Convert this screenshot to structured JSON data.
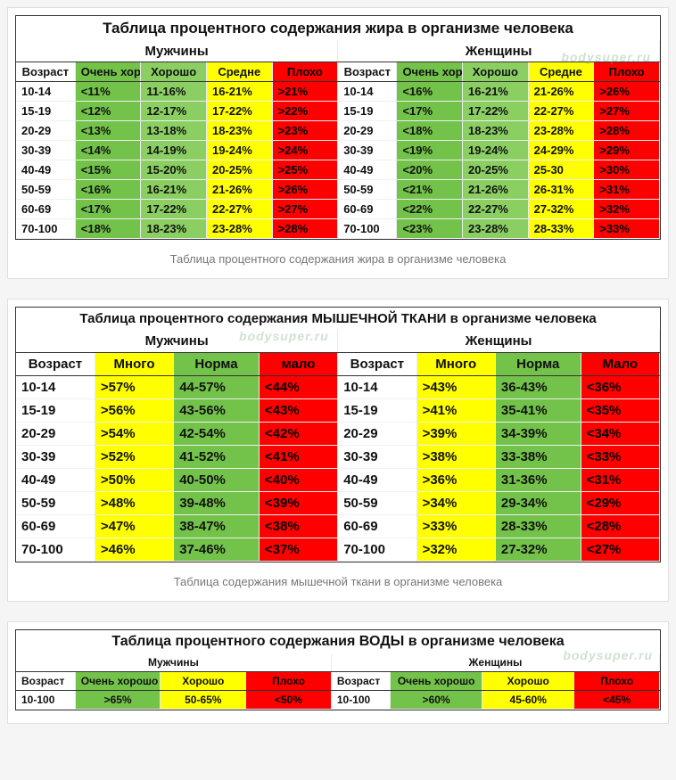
{
  "colors": {
    "very_good": "#73c24a",
    "good": "#8bcf63",
    "medium": "#ffff00",
    "bad": "#ff0000",
    "border": "#333333",
    "bg": "#ffffff"
  },
  "watermark": "bodysuper.ru",
  "fat": {
    "title": "Таблица процентного содержания жира в организме человека",
    "caption": "Таблица процентного содержания жира в организме человека",
    "gender_men": "Мужчины",
    "gender_women": "Женщины",
    "headers": {
      "age": "Возраст",
      "very_good": "Очень хорошо",
      "good": "Хорошо",
      "medium": "Средне",
      "bad": "Плохо"
    },
    "men": [
      {
        "age": "10-14",
        "vg": "<11%",
        "g": "11-16%",
        "m": "16-21%",
        "b": ">21%"
      },
      {
        "age": "15-19",
        "vg": "<12%",
        "g": "12-17%",
        "m": "17-22%",
        "b": ">22%"
      },
      {
        "age": "20-29",
        "vg": "<13%",
        "g": "13-18%",
        "m": "18-23%",
        "b": ">23%"
      },
      {
        "age": "30-39",
        "vg": "<14%",
        "g": "14-19%",
        "m": "19-24%",
        "b": ">24%"
      },
      {
        "age": "40-49",
        "vg": "<15%",
        "g": "15-20%",
        "m": "20-25%",
        "b": ">25%"
      },
      {
        "age": "50-59",
        "vg": "<16%",
        "g": "16-21%",
        "m": "21-26%",
        "b": ">26%"
      },
      {
        "age": "60-69",
        "vg": "<17%",
        "g": "17-22%",
        "m": "22-27%",
        "b": ">27%"
      },
      {
        "age": "70-100",
        "vg": "<18%",
        "g": "18-23%",
        "m": "23-28%",
        "b": ">28%"
      }
    ],
    "women": [
      {
        "age": "10-14",
        "vg": "<16%",
        "g": "16-21%",
        "m": "21-26%",
        "b": ">26%"
      },
      {
        "age": "15-19",
        "vg": "<17%",
        "g": "17-22%",
        "m": "22-27%",
        "b": ">27%"
      },
      {
        "age": "20-29",
        "vg": "<18%",
        "g": "18-23%",
        "m": "23-28%",
        "b": ">28%"
      },
      {
        "age": "30-39",
        "vg": "<19%",
        "g": "19-24%",
        "m": "24-29%",
        "b": ">29%"
      },
      {
        "age": "40-49",
        "vg": "<20%",
        "g": "20-25%",
        "m": "25-30",
        "b": ">30%"
      },
      {
        "age": "50-59",
        "vg": "<21%",
        "g": "21-26%",
        "m": "26-31%",
        "b": ">31%"
      },
      {
        "age": "60-69",
        "vg": "<22%",
        "g": "22-27%",
        "m": "27-32%",
        "b": ">32%"
      },
      {
        "age": "70-100",
        "vg": "<23%",
        "g": "23-28%",
        "m": "28-33%",
        "b": ">33%"
      }
    ]
  },
  "muscle": {
    "title": "Таблица процентного содержания МЫШЕЧНОЙ ТКАНИ в организме человека",
    "caption": "Таблица содержания мышечной ткани в организме человека",
    "gender_men": "Мужчины",
    "gender_women": "Женщины",
    "headers": {
      "age": "Возраст",
      "much": "Много",
      "norm": "Норма",
      "low_m": "мало",
      "low_w": "Мало"
    },
    "men": [
      {
        "age": "10-14",
        "much": ">57%",
        "norm": "44-57%",
        "low": "<44%"
      },
      {
        "age": "15-19",
        "much": ">56%",
        "norm": "43-56%",
        "low": "<43%"
      },
      {
        "age": "20-29",
        "much": ">54%",
        "norm": "42-54%",
        "low": "<42%"
      },
      {
        "age": "30-39",
        "much": ">52%",
        "norm": "41-52%",
        "low": "<41%"
      },
      {
        "age": "40-49",
        "much": ">50%",
        "norm": "40-50%",
        "low": "<40%"
      },
      {
        "age": "50-59",
        "much": ">48%",
        "norm": "39-48%",
        "low": "<39%"
      },
      {
        "age": "60-69",
        "much": ">47%",
        "norm": "38-47%",
        "low": "<38%"
      },
      {
        "age": "70-100",
        "much": ">46%",
        "norm": "37-46%",
        "low": "<37%"
      }
    ],
    "women": [
      {
        "age": "10-14",
        "much": ">43%",
        "norm": "36-43%",
        "low": "<36%"
      },
      {
        "age": "15-19",
        "much": ">41%",
        "norm": "35-41%",
        "low": "<35%"
      },
      {
        "age": "20-29",
        "much": ">39%",
        "norm": "34-39%",
        "low": "<34%"
      },
      {
        "age": "30-39",
        "much": ">38%",
        "norm": "33-38%",
        "low": "<33%"
      },
      {
        "age": "40-49",
        "much": ">36%",
        "norm": "31-36%",
        "low": "<31%"
      },
      {
        "age": "50-59",
        "much": ">34%",
        "norm": "29-34%",
        "low": "<29%"
      },
      {
        "age": "60-69",
        "much": ">33%",
        "norm": "28-33%",
        "low": "<28%"
      },
      {
        "age": "70-100",
        "much": ">32%",
        "norm": "27-32%",
        "low": "<27%"
      }
    ]
  },
  "water": {
    "title": "Таблица процентного содержания ВОДЫ в организме человека",
    "gender_men": "Мужчины",
    "gender_women": "Женщины",
    "headers": {
      "age": "Возраст",
      "very_good": "Очень хорошо",
      "good": "Хорошо",
      "bad": "Плохо"
    },
    "men": [
      {
        "age": "10-100",
        "vg": ">65%",
        "g": "50-65%",
        "b": "<50%"
      }
    ],
    "women": [
      {
        "age": "10-100",
        "vg": ">60%",
        "g": "45-60%",
        "b": "<45%"
      }
    ]
  }
}
